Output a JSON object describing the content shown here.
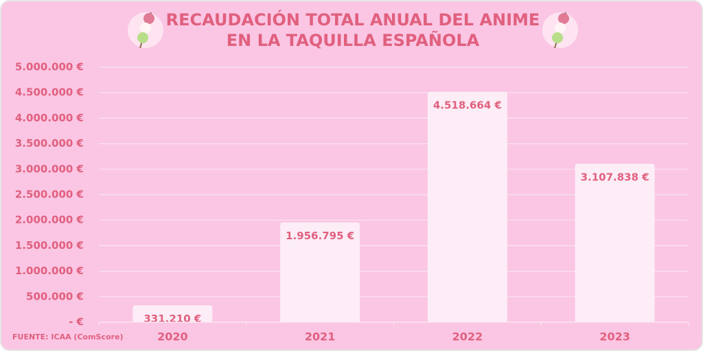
{
  "chart_data": {
    "type": "bar",
    "title": "RECAUDACIÓN TOTAL ANUAL DEL ANIME EN LA TAQUILLA ESPAÑOLA",
    "categories": [
      "2020",
      "2021",
      "2022",
      "2023"
    ],
    "values": [
      331210,
      1956795,
      4518664,
      3107838
    ],
    "value_labels": [
      "331.210 €",
      "1.956.795 €",
      "4.518.664 €",
      "3.107.838 €"
    ],
    "color": "#fcedf6",
    "ylim": [
      0,
      5000000
    ],
    "yticks": [
      {
        "value": 0,
        "label": "-   €"
      },
      {
        "value": 500000,
        "label": "500.000 €"
      },
      {
        "value": 1000000,
        "label": "1.000.000 €"
      },
      {
        "value": 1500000,
        "label": "1.500.000 €"
      },
      {
        "value": 2000000,
        "label": "2.000.000 €"
      },
      {
        "value": 2500000,
        "label": "2.500.000 €"
      },
      {
        "value": 3000000,
        "label": "3.000.000 €"
      },
      {
        "value": 3500000,
        "label": "3.500.000 €"
      },
      {
        "value": 4000000,
        "label": "4.000.000 €"
      },
      {
        "value": 4500000,
        "label": "4.500.000 €"
      },
      {
        "value": 5000000,
        "label": "5.000.000 €"
      }
    ],
    "grid": true,
    "source": "FUENTE: ICAA (ComScore)"
  }
}
